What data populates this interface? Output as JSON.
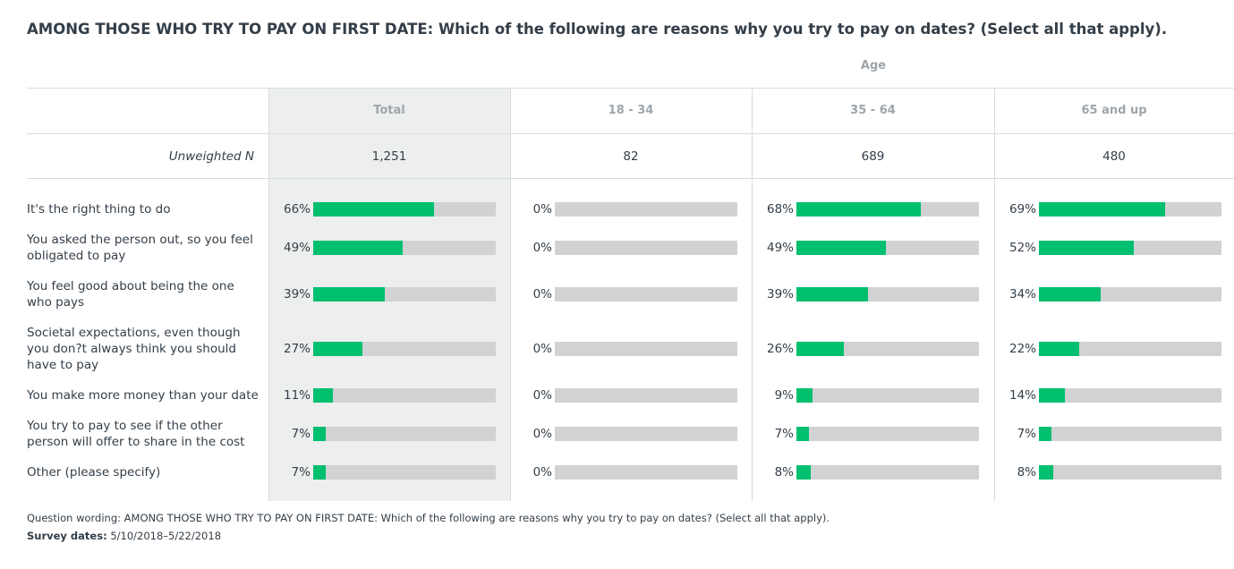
{
  "title": "AMONG THOSE WHO TRY TO PAY ON FIRST DATE: Which of the following are reasons why you try to pay on dates? (Select all that apply).",
  "group_label": "Age",
  "unweighted_label": "Unweighted N",
  "footer": {
    "wording": "Question wording: AMONG THOSE WHO TRY TO PAY ON FIRST DATE: Which of the following are reasons why you try to pay on dates? (Select all that apply).",
    "dates_label": "Survey dates:",
    "dates_value": "5/10/2018–5/22/2018"
  },
  "colors": {
    "bar": "#00bf6f",
    "track": "#d0d2d3",
    "total_bg": "#edeeee",
    "header_text": "#9da5ab"
  },
  "chart_data": {
    "type": "bar",
    "orientation": "horizontal",
    "unit": "%",
    "xlim": [
      0,
      100
    ],
    "categories": [
      "It's the right thing to do",
      "You asked the person out, so you feel obligated to pay",
      "You feel good about being the one who pays",
      "Societal expectations, even though you don?t always think you should have to pay",
      "You make more money than your date",
      "You try to pay to see if the other person will offer to share in the cost",
      "Other (please specify)"
    ],
    "series": [
      {
        "name": "Total",
        "n": "1,251",
        "values": [
          66,
          49,
          39,
          27,
          11,
          7,
          7
        ]
      },
      {
        "name": "18 - 34",
        "n": "82",
        "values": [
          0,
          0,
          0,
          0,
          0,
          0,
          0
        ]
      },
      {
        "name": "35 - 64",
        "n": "689",
        "values": [
          68,
          49,
          39,
          26,
          9,
          7,
          8
        ]
      },
      {
        "name": "65 and up",
        "n": "480",
        "values": [
          69,
          52,
          34,
          22,
          14,
          7,
          8
        ]
      }
    ]
  }
}
